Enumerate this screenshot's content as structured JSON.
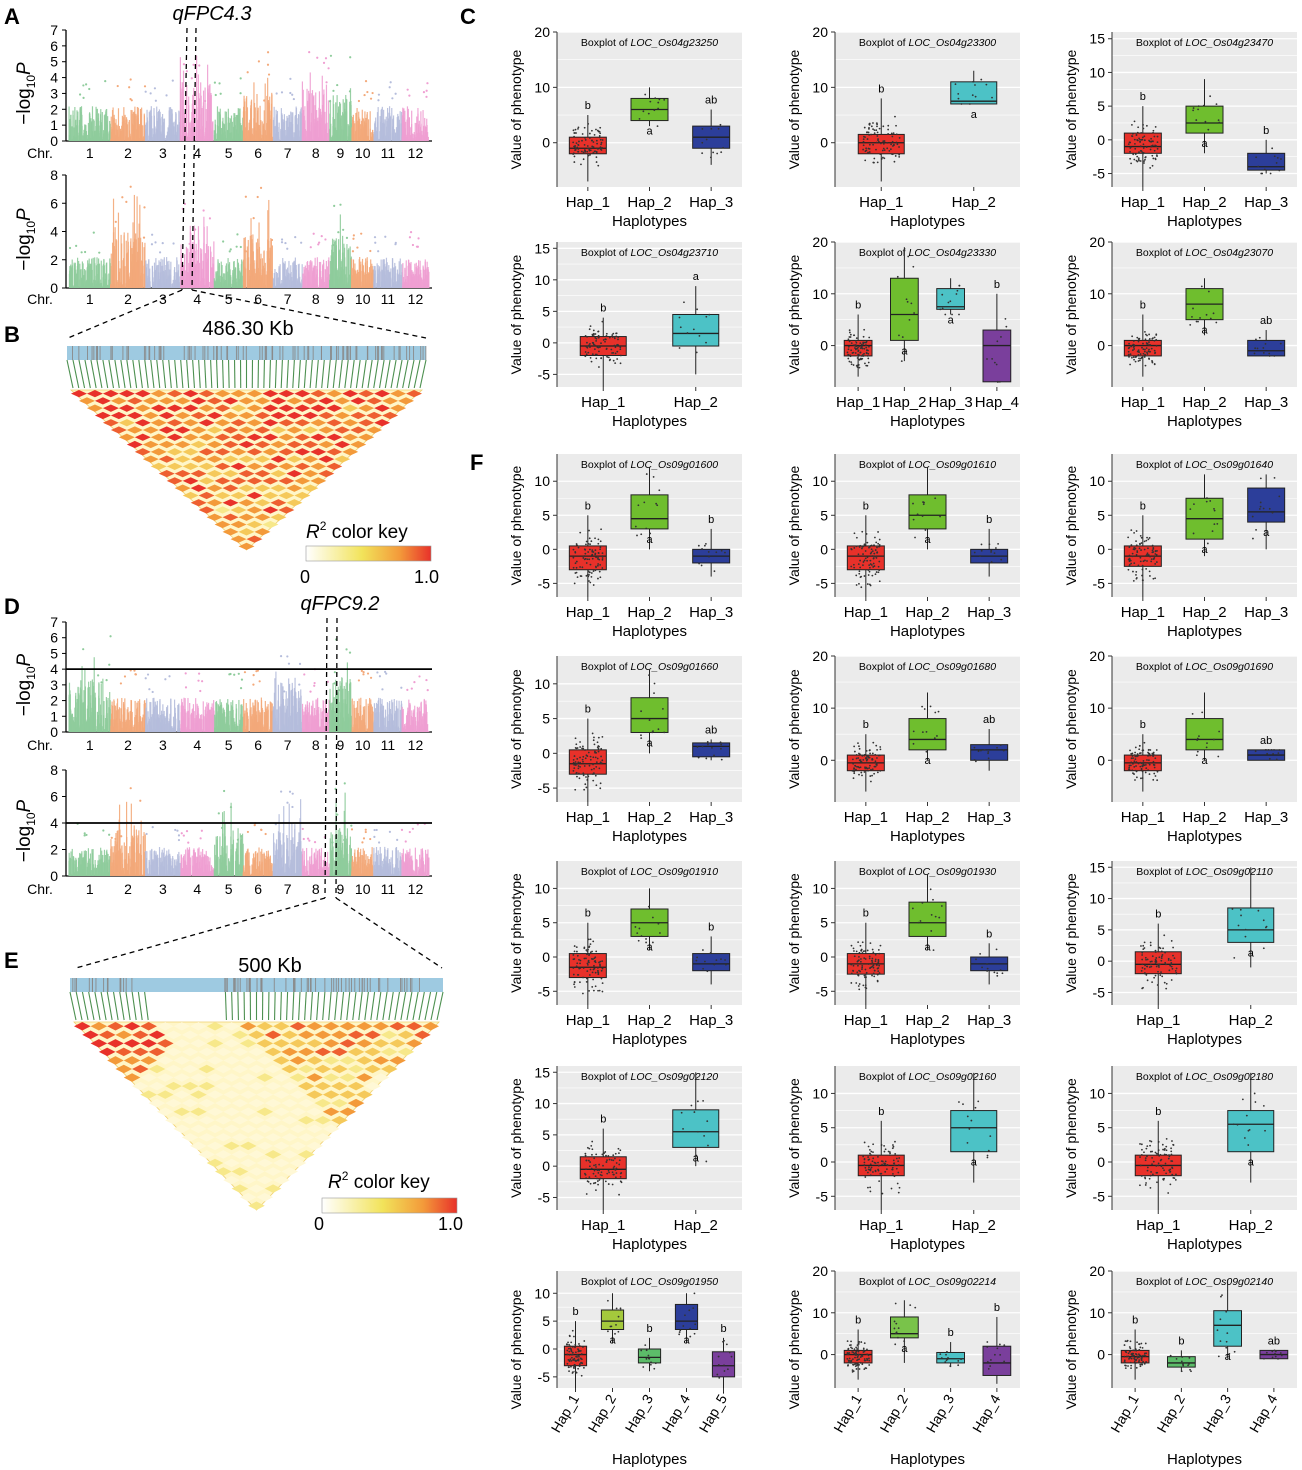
{
  "colors": {
    "chr": [
      "#8fcc9c",
      "#f3a97a",
      "#b5bddc",
      "#ef9fd2"
    ],
    "panel_bg": "#ebebeb",
    "hap": {
      "red": "#e8312a",
      "green": "#6fbe2e",
      "navy": "#2c3e9a",
      "cyan": "#4cc2c6",
      "purple": "#7a3f9c",
      "lime": "#a4c93c",
      "ltgreen": "#5cbc69",
      "green2": "#79c34a"
    },
    "ld_line": "#2e7d32",
    "ld_bar": "#9ecae1"
  },
  "panels": {
    "A": "A",
    "B": "B",
    "C": "C",
    "D": "D",
    "E": "E",
    "F": "F"
  },
  "qtl": {
    "q4": "qFPC4.3",
    "q9": "qFPC9.2"
  },
  "ld": {
    "b_size": "486.30 Kb",
    "e_size": "500 Kb",
    "key_r": "R",
    "key_sup": "2",
    "key_text": " color key",
    "key_min": "0",
    "key_max": "1.0"
  },
  "manhattan": {
    "ylab_main": "−log",
    "ylab_sub": "10",
    "ylab_p": "P",
    "chr_label": "Chr.",
    "chromosomes": [
      "1",
      "2",
      "3",
      "4",
      "5",
      "6",
      "7",
      "8",
      "9",
      "10",
      "11",
      "12"
    ],
    "plots": [
      {
        "id": "A1",
        "yticks": [
          0,
          1,
          2,
          3,
          4,
          5,
          6,
          7
        ],
        "ymax": 7,
        "threshold": null
      },
      {
        "id": "A2",
        "yticks": [
          0,
          2,
          4,
          6,
          8
        ],
        "ymax": 8,
        "threshold": null
      },
      {
        "id": "D1",
        "yticks": [
          0,
          1,
          2,
          3,
          4,
          5,
          6,
          7
        ],
        "ymax": 7,
        "threshold": 4
      },
      {
        "id": "D2",
        "yticks": [
          0,
          2,
          4,
          6,
          8
        ],
        "ymax": 8,
        "threshold": 4
      }
    ]
  },
  "box_common": {
    "ylabel": "Value of phenotype",
    "xlabel": "Haplotypes",
    "title_prefix": "Boxplot of "
  },
  "chart_data": [
    {
      "type": "box",
      "gene": "LOC_Os04g23250",
      "yticks": [
        0,
        10,
        20
      ],
      "ylim": [
        -8,
        20
      ],
      "haps": [
        {
          "name": "Hap_1",
          "color": "red",
          "q1": -2,
          "med": -1,
          "q3": 1,
          "lo": -7,
          "hi": 5,
          "letter": "b"
        },
        {
          "name": "Hap_2",
          "color": "green",
          "q1": 4,
          "med": 6,
          "q3": 8,
          "lo": 3,
          "hi": 10,
          "letter": "a"
        },
        {
          "name": "Hap_3",
          "color": "navy",
          "q1": -1,
          "med": 1,
          "q3": 3,
          "lo": -4,
          "hi": 6,
          "letter": "ab"
        }
      ]
    },
    {
      "type": "box",
      "gene": "LOC_Os04g23300",
      "yticks": [
        0,
        10,
        20
      ],
      "ylim": [
        -8,
        20
      ],
      "haps": [
        {
          "name": "Hap_1",
          "color": "red",
          "q1": -2,
          "med": 0,
          "q3": 1.5,
          "lo": -7,
          "hi": 8,
          "letter": "b"
        },
        {
          "name": "Hap_2",
          "color": "cyan",
          "q1": 7,
          "med": 7.5,
          "q3": 11,
          "lo": 7,
          "hi": 13,
          "letter": "a"
        }
      ]
    },
    {
      "type": "box",
      "gene": "LOC_Os04g23470",
      "yticks": [
        -5,
        0,
        5,
        10,
        15
      ],
      "ylim": [
        -7,
        16
      ],
      "haps": [
        {
          "name": "Hap_1",
          "color": "red",
          "q1": -2,
          "med": -1,
          "q3": 1,
          "lo": -7,
          "hi": 5,
          "letter": "b"
        },
        {
          "name": "Hap_2",
          "color": "green",
          "q1": 1,
          "med": 2.5,
          "q3": 5,
          "lo": -2,
          "hi": 9,
          "letter": "a"
        },
        {
          "name": "Hap_3",
          "color": "navy",
          "q1": -4.5,
          "med": -4,
          "q3": -2,
          "lo": -5,
          "hi": 0,
          "letter": "b"
        }
      ]
    },
    {
      "type": "box",
      "gene": "LOC_Os04g23710",
      "yticks": [
        -5,
        0,
        5,
        10,
        15
      ],
      "ylim": [
        -7,
        16
      ],
      "haps": [
        {
          "name": "Hap_1",
          "color": "red",
          "q1": -2,
          "med": -0.5,
          "q3": 1,
          "lo": -7,
          "hi": 4,
          "letter": "b"
        },
        {
          "name": "Hap_2",
          "color": "cyan",
          "q1": -0.5,
          "med": 1.5,
          "q3": 4.5,
          "lo": -5,
          "hi": 9,
          "letter": "a"
        }
      ]
    },
    {
      "type": "box",
      "gene": "LOC_Os04g23330",
      "yticks": [
        0,
        10,
        20
      ],
      "ylim": [
        -8,
        20
      ],
      "haps": [
        {
          "name": "Hap_1",
          "color": "red",
          "q1": -2,
          "med": 0,
          "q3": 1,
          "lo": -6,
          "hi": 6,
          "letter": "b"
        },
        {
          "name": "Hap_2",
          "color": "green",
          "q1": 1,
          "med": 6,
          "q3": 13,
          "lo": -3,
          "hi": 19,
          "letter": "a"
        },
        {
          "name": "Hap_3",
          "color": "cyan",
          "q1": 7,
          "med": 7.5,
          "q3": 11,
          "lo": 6,
          "hi": 13,
          "letter": "a"
        },
        {
          "name": "Hap_4",
          "color": "purple",
          "q1": -7,
          "med": 0,
          "q3": 3,
          "lo": -7,
          "hi": 10,
          "letter": "b"
        }
      ]
    },
    {
      "type": "box",
      "gene": "LOC_Os04g23070",
      "yticks": [
        0,
        10,
        20
      ],
      "ylim": [
        -8,
        20
      ],
      "haps": [
        {
          "name": "Hap_1",
          "color": "red",
          "q1": -2,
          "med": 0,
          "q3": 1,
          "lo": -6,
          "hi": 6,
          "letter": "b"
        },
        {
          "name": "Hap_2",
          "color": "green",
          "q1": 5,
          "med": 8,
          "q3": 11,
          "lo": 2,
          "hi": 13,
          "letter": "a"
        },
        {
          "name": "Hap_3",
          "color": "navy",
          "q1": -2,
          "med": -1,
          "q3": 1,
          "lo": -2,
          "hi": 3,
          "letter": "ab"
        }
      ]
    },
    {
      "type": "box",
      "gene": "LOC_Os09g01600",
      "yticks": [
        -5,
        0,
        5,
        10
      ],
      "ylim": [
        -7,
        14
      ],
      "haps": [
        {
          "name": "Hap_1",
          "color": "red",
          "q1": -3,
          "med": -1,
          "q3": 0.5,
          "lo": -7,
          "hi": 5,
          "letter": "b"
        },
        {
          "name": "Hap_2",
          "color": "green",
          "q1": 3,
          "med": 4.5,
          "q3": 8,
          "lo": 0,
          "hi": 12,
          "letter": "a"
        },
        {
          "name": "Hap_3",
          "color": "navy",
          "q1": -2,
          "med": -1,
          "q3": 0,
          "lo": -4,
          "hi": 3,
          "letter": "b"
        }
      ]
    },
    {
      "type": "box",
      "gene": "LOC_Os09g01610",
      "yticks": [
        -5,
        0,
        5,
        10
      ],
      "ylim": [
        -7,
        14
      ],
      "haps": [
        {
          "name": "Hap_1",
          "color": "red",
          "q1": -3,
          "med": -1,
          "q3": 0.5,
          "lo": -7,
          "hi": 5,
          "letter": "b"
        },
        {
          "name": "Hap_2",
          "color": "green",
          "q1": 3,
          "med": 5,
          "q3": 8,
          "lo": 0,
          "hi": 12,
          "letter": "a"
        },
        {
          "name": "Hap_3",
          "color": "navy",
          "q1": -2,
          "med": -1,
          "q3": 0,
          "lo": -4,
          "hi": 3,
          "letter": "b"
        }
      ]
    },
    {
      "type": "box",
      "gene": "LOC_Os09g01640",
      "yticks": [
        -5,
        0,
        5,
        10
      ],
      "ylim": [
        -7,
        14
      ],
      "haps": [
        {
          "name": "Hap_1",
          "color": "red",
          "q1": -2.5,
          "med": -1,
          "q3": 0.5,
          "lo": -7,
          "hi": 5,
          "letter": "b"
        },
        {
          "name": "Hap_2",
          "color": "green",
          "q1": 1.5,
          "med": 4.5,
          "q3": 7.5,
          "lo": -1,
          "hi": 11,
          "letter": "a"
        },
        {
          "name": "Hap_3",
          "color": "navy",
          "q1": 4,
          "med": 5.5,
          "q3": 9,
          "lo": 0,
          "hi": 11,
          "letter": "a"
        }
      ]
    },
    {
      "type": "box",
      "gene": "LOC_Os09g01660",
      "yticks": [
        -5,
        0,
        5,
        10
      ],
      "ylim": [
        -7,
        14
      ],
      "haps": [
        {
          "name": "Hap_1",
          "color": "red",
          "q1": -3,
          "med": -1.5,
          "q3": 0.5,
          "lo": -7,
          "hi": 5,
          "letter": "b"
        },
        {
          "name": "Hap_2",
          "color": "green",
          "q1": 3,
          "med": 5,
          "q3": 8,
          "lo": 0,
          "hi": 12,
          "letter": "a"
        },
        {
          "name": "Hap_3",
          "color": "navy",
          "q1": -0.5,
          "med": 1,
          "q3": 1.5,
          "lo": -1,
          "hi": 2,
          "letter": "ab"
        }
      ]
    },
    {
      "type": "box",
      "gene": "LOC_Os09g01680",
      "yticks": [
        0,
        10,
        20
      ],
      "ylim": [
        -8,
        20
      ],
      "haps": [
        {
          "name": "Hap_1",
          "color": "red",
          "q1": -2,
          "med": -0.5,
          "q3": 1,
          "lo": -6,
          "hi": 5,
          "letter": "b"
        },
        {
          "name": "Hap_2",
          "color": "green",
          "q1": 2,
          "med": 4,
          "q3": 8,
          "lo": 0,
          "hi": 13,
          "letter": "a"
        },
        {
          "name": "Hap_3",
          "color": "navy",
          "q1": 0,
          "med": 2,
          "q3": 3,
          "lo": -2,
          "hi": 6,
          "letter": "ab"
        }
      ]
    },
    {
      "type": "box",
      "gene": "LOC_Os09g01690",
      "yticks": [
        0,
        10,
        20
      ],
      "ylim": [
        -8,
        20
      ],
      "haps": [
        {
          "name": "Hap_1",
          "color": "red",
          "q1": -2,
          "med": -0.5,
          "q3": 1,
          "lo": -6,
          "hi": 5,
          "letter": "b"
        },
        {
          "name": "Hap_2",
          "color": "green",
          "q1": 2,
          "med": 4,
          "q3": 8,
          "lo": 0,
          "hi": 13,
          "letter": "a"
        },
        {
          "name": "Hap_3",
          "color": "navy",
          "q1": 0,
          "med": 1,
          "q3": 2,
          "lo": 0,
          "hi": 2,
          "letter": "ab"
        }
      ]
    },
    {
      "type": "box",
      "gene": "LOC_Os09g01910",
      "yticks": [
        -5,
        0,
        5,
        10
      ],
      "ylim": [
        -7,
        14
      ],
      "haps": [
        {
          "name": "Hap_1",
          "color": "red",
          "q1": -3,
          "med": -1.5,
          "q3": 0.5,
          "lo": -7,
          "hi": 5,
          "letter": "b"
        },
        {
          "name": "Hap_2",
          "color": "green",
          "q1": 3,
          "med": 5,
          "q3": 7,
          "lo": 1,
          "hi": 10,
          "letter": "a"
        },
        {
          "name": "Hap_3",
          "color": "navy",
          "q1": -2,
          "med": -1,
          "q3": 0.5,
          "lo": -4,
          "hi": 3,
          "letter": "b"
        }
      ]
    },
    {
      "type": "box",
      "gene": "LOC_Os09g01930",
      "yticks": [
        -5,
        0,
        5,
        10
      ],
      "ylim": [
        -7,
        14
      ],
      "haps": [
        {
          "name": "Hap_1",
          "color": "red",
          "q1": -2.5,
          "med": -1,
          "q3": 0.5,
          "lo": -7,
          "hi": 5,
          "letter": "b"
        },
        {
          "name": "Hap_2",
          "color": "green",
          "q1": 3,
          "med": 5,
          "q3": 8,
          "lo": 1,
          "hi": 12,
          "letter": "a"
        },
        {
          "name": "Hap_3",
          "color": "navy",
          "q1": -2,
          "med": -1,
          "q3": 0,
          "lo": -4,
          "hi": 2,
          "letter": "b"
        }
      ]
    },
    {
      "type": "box",
      "gene": "LOC_Os09g02110",
      "yticks": [
        -5,
        0,
        5,
        10,
        15
      ],
      "ylim": [
        -7,
        16
      ],
      "haps": [
        {
          "name": "Hap_1",
          "color": "red",
          "q1": -2,
          "med": -0.5,
          "q3": 1.5,
          "lo": -7,
          "hi": 6,
          "letter": "b"
        },
        {
          "name": "Hap_2",
          "color": "cyan",
          "q1": 3,
          "med": 5,
          "q3": 8.5,
          "lo": -1,
          "hi": 15,
          "letter": "a"
        }
      ]
    },
    {
      "type": "box",
      "gene": "LOC_Os09g02120",
      "yticks": [
        -5,
        0,
        5,
        10,
        15
      ],
      "ylim": [
        -7,
        16
      ],
      "haps": [
        {
          "name": "Hap_1",
          "color": "red",
          "q1": -2,
          "med": -0.5,
          "q3": 1.5,
          "lo": -7,
          "hi": 6,
          "letter": "b"
        },
        {
          "name": "Hap_2",
          "color": "cyan",
          "q1": 3,
          "med": 5.5,
          "q3": 9,
          "lo": 0,
          "hi": 15,
          "letter": "a"
        }
      ]
    },
    {
      "type": "box",
      "gene": "LOC_Os09g02160",
      "yticks": [
        -5,
        0,
        5,
        10
      ],
      "ylim": [
        -7,
        14
      ],
      "haps": [
        {
          "name": "Hap_1",
          "color": "red",
          "q1": -2,
          "med": -0.5,
          "q3": 1,
          "lo": -7,
          "hi": 6,
          "letter": "b"
        },
        {
          "name": "Hap_2",
          "color": "cyan",
          "q1": 1.5,
          "med": 5,
          "q3": 7.5,
          "lo": -3,
          "hi": 13,
          "letter": "a"
        }
      ]
    },
    {
      "type": "box",
      "gene": "LOC_Os09g02180",
      "yticks": [
        -5,
        0,
        5,
        10
      ],
      "ylim": [
        -7,
        14
      ],
      "haps": [
        {
          "name": "Hap_1",
          "color": "red",
          "q1": -2,
          "med": -0.5,
          "q3": 1,
          "lo": -7,
          "hi": 6,
          "letter": "b"
        },
        {
          "name": "Hap_2",
          "color": "cyan",
          "q1": 1.5,
          "med": 5.5,
          "q3": 7.5,
          "lo": -3,
          "hi": 13,
          "letter": "a"
        }
      ]
    },
    {
      "type": "box",
      "gene": "LOC_Os09g01950",
      "yticks": [
        -5,
        0,
        5,
        10
      ],
      "ylim": [
        -7,
        14
      ],
      "rotate": true,
      "haps": [
        {
          "name": "Hap_1",
          "color": "red",
          "q1": -3,
          "med": -1,
          "q3": 0.5,
          "lo": -7,
          "hi": 5,
          "letter": "b"
        },
        {
          "name": "Hap_2",
          "color": "lime",
          "q1": 3.5,
          "med": 5,
          "q3": 7,
          "lo": 1,
          "hi": 10,
          "letter": "a"
        },
        {
          "name": "Hap_3",
          "color": "ltgreen",
          "q1": -2.5,
          "med": -1.5,
          "q3": 0,
          "lo": -4,
          "hi": 2,
          "letter": "b"
        },
        {
          "name": "Hap_4",
          "color": "navy",
          "q1": 3.5,
          "med": 5,
          "q3": 8,
          "lo": 1,
          "hi": 10,
          "letter": "a"
        },
        {
          "name": "Hap_5",
          "color": "purple",
          "q1": -5,
          "med": -3,
          "q3": -0.5,
          "lo": -8,
          "hi": 2,
          "letter": "b"
        }
      ]
    },
    {
      "type": "box",
      "gene": "LOC_Os09g02214",
      "yticks": [
        0,
        10,
        20
      ],
      "ylim": [
        -8,
        20
      ],
      "rotate": true,
      "haps": [
        {
          "name": "Hap_1",
          "color": "red",
          "q1": -2,
          "med": 0,
          "q3": 1,
          "lo": -6,
          "hi": 6,
          "letter": "b"
        },
        {
          "name": "Hap_2",
          "color": "green2",
          "q1": 4,
          "med": 5,
          "q3": 9,
          "lo": -2,
          "hi": 13,
          "letter": "a"
        },
        {
          "name": "Hap_3",
          "color": "cyan",
          "q1": -2,
          "med": -1,
          "q3": 0.5,
          "lo": -3,
          "hi": 3,
          "letter": "b"
        },
        {
          "name": "Hap_4",
          "color": "purple",
          "q1": -5,
          "med": -2,
          "q3": 2,
          "lo": -7,
          "hi": 9,
          "letter": "b"
        }
      ]
    },
    {
      "type": "box",
      "gene": "LOC_Os09g02140",
      "yticks": [
        0,
        10,
        20
      ],
      "ylim": [
        -8,
        20
      ],
      "rotate": true,
      "haps": [
        {
          "name": "Hap_1",
          "color": "red",
          "q1": -2,
          "med": -0.5,
          "q3": 1,
          "lo": -6,
          "hi": 6,
          "letter": "b"
        },
        {
          "name": "Hap_2",
          "color": "ltgreen",
          "q1": -3,
          "med": -2,
          "q3": -0.5,
          "lo": -4,
          "hi": 1,
          "letter": "b"
        },
        {
          "name": "Hap_3",
          "color": "cyan",
          "q1": 2,
          "med": 7,
          "q3": 10.5,
          "lo": -1,
          "hi": 18,
          "letter": "a"
        },
        {
          "name": "Hap_4",
          "color": "purple",
          "q1": -1,
          "med": 0,
          "q3": 1,
          "lo": -1,
          "hi": 1,
          "letter": "ab"
        }
      ]
    }
  ]
}
